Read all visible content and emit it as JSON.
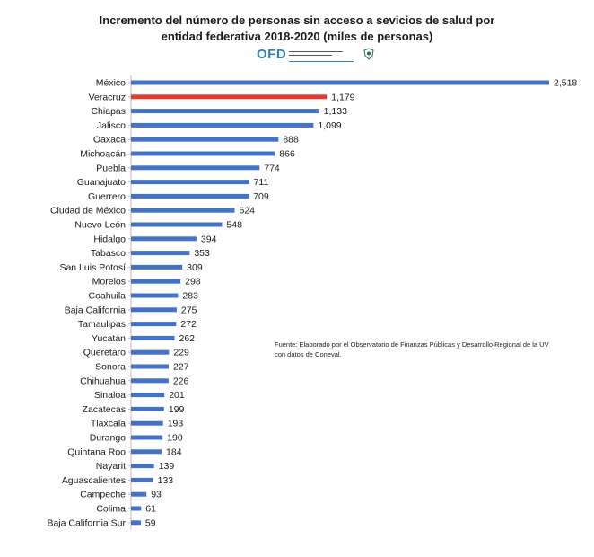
{
  "header": {
    "title_line1": "Incremento del número de personas sin acceso  a sevicios  de salud  por",
    "title_line2": "entidad federativa 2018-2020 (miles de personas)",
    "logo_text": "OFD"
  },
  "source_note": "Fuente: Elaborado por el Observatorio de Finanzas Públicas y Desarrollo Regional de la UV con datos de Coneval.",
  "colors": {
    "bar": "#4472c4",
    "highlight": "#e03c31"
  },
  "chart_data": {
    "type": "bar",
    "orientation": "horizontal",
    "title": "Incremento del número de personas sin acceso  a sevicios  de salud  por entidad federativa 2018-2020 (miles de personas)",
    "highlight": "Veracruz",
    "xlim": [
      0,
      2518
    ],
    "grid": false,
    "categories": [
      "México",
      "Veracruz",
      "Chiapas",
      "Jalisco",
      "Oaxaca",
      "Michoacán",
      "Puebla",
      "Guanajuato",
      "Guerrero",
      "Ciudad de México",
      "Nuevo León",
      "Hidalgo",
      "Tabasco",
      "San Luis Potosí",
      "Morelos",
      "Coahuila",
      "Baja California",
      "Tamaulipas",
      "Yucatán",
      "Querétaro",
      "Sonora",
      "Chihuahua",
      "Sinaloa",
      "Zacatecas",
      "Tlaxcala",
      "Durango",
      "Quintana Roo",
      "Nayarit",
      "Aguascalientes",
      "Campeche",
      "Colima",
      "Baja California Sur"
    ],
    "values": [
      2518,
      1179,
      1133,
      1099,
      888,
      866,
      774,
      711,
      709,
      624,
      548,
      394,
      353,
      309,
      298,
      283,
      275,
      272,
      262,
      229,
      227,
      226,
      201,
      199,
      193,
      190,
      184,
      139,
      133,
      93,
      61,
      59
    ],
    "labels": [
      "2,518",
      "1,179",
      "1,133",
      "1,099",
      "888",
      "866",
      "774",
      "711",
      "709",
      "624",
      "548",
      "394",
      "353",
      "309",
      "298",
      "283",
      "275",
      "272",
      "262",
      "229",
      "227",
      "226",
      "201",
      "199",
      "193",
      "190",
      "184",
      "139",
      "133",
      "93",
      "61",
      "59"
    ]
  }
}
